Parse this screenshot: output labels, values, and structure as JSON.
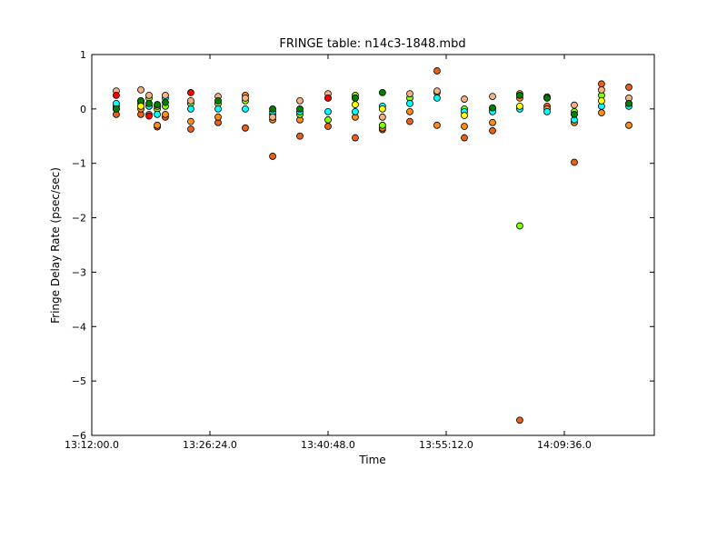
{
  "chart_data": {
    "type": "scatter",
    "title": "FRINGE table: n14c3-1848.mbd",
    "x_label": "Time",
    "y_label": "Fringe Delay Rate (psec/sec)",
    "x": [
      "13:14:59",
      "13:17:59",
      "13:18:59",
      "13:19:59",
      "13:20:58",
      "13:24:04",
      "13:27:24",
      "13:30:43",
      "13:34:03",
      "13:37:22",
      "13:40:48",
      "13:44:07",
      "13:47:26",
      "13:50:46",
      "13:54:05",
      "13:57:25",
      "14:00:51",
      "14:04:10",
      "14:07:30",
      "14:10:49",
      "14:14:08",
      "14:17:28"
    ],
    "xlim": [
      "13:12:00",
      "14:20:34"
    ],
    "xticks": [
      {
        "value": "13:12:00",
        "label": "13:12:00.0"
      },
      {
        "value": "13:26:24",
        "label": "13:26:24.0"
      },
      {
        "value": "13:40:48",
        "label": "13:40:48.0"
      },
      {
        "value": "13:55:12",
        "label": "13:55:12.0"
      },
      {
        "value": "14:09:36",
        "label": "14:09:36.0"
      }
    ],
    "ylim": [
      -6,
      1
    ],
    "yticks": [
      {
        "value": -6,
        "label": "−6"
      },
      {
        "value": -5,
        "label": "−5"
      },
      {
        "value": -4,
        "label": "−4"
      },
      {
        "value": -3,
        "label": "−3"
      },
      {
        "value": -2,
        "label": "−2"
      },
      {
        "value": -1,
        "label": "−1"
      },
      0,
      1
    ],
    "series": [
      {
        "color": "#e8601c",
        "values": [
          -0.1,
          -0.1,
          0.05,
          -0.33,
          -0.15,
          -0.37,
          -0.25,
          -0.35,
          -0.87,
          -0.5,
          -0.32,
          -0.53,
          -0.38,
          -0.23,
          0.7,
          -0.53,
          -0.4,
          -5.72,
          0.05,
          -0.98,
          0.46,
          0.4
        ]
      },
      {
        "color": "#ff8c1a",
        "values": [
          0.0,
          0.0,
          -0.1,
          -0.3,
          -0.1,
          -0.23,
          -0.15,
          0.25,
          -0.2,
          -0.2,
          0.2,
          -0.15,
          -0.35,
          -0.05,
          -0.3,
          -0.32,
          -0.25,
          0.2,
          0.0,
          -0.25,
          -0.07,
          -0.3
        ]
      },
      {
        "color": "#80ff00",
        "values": [
          0.05,
          0.1,
          0.2,
          0.0,
          0.05,
          0.1,
          0.1,
          0.15,
          -0.1,
          -0.1,
          -0.2,
          0.25,
          -0.3,
          0.2,
          0.3,
          0.0,
          0.0,
          -2.15,
          0.2,
          -0.05,
          0.25,
          0.1
        ]
      },
      {
        "color": "#00ffff",
        "values": [
          0.1,
          0.15,
          0.05,
          -0.1,
          0.2,
          0.0,
          0.0,
          0.0,
          -0.05,
          -0.05,
          -0.05,
          -0.05,
          0.05,
          0.1,
          0.2,
          -0.05,
          -0.05,
          0.0,
          -0.05,
          -0.2,
          0.05,
          0.05
        ]
      },
      {
        "color": "#f4b183",
        "values": [
          0.33,
          0.35,
          0.25,
          0.05,
          0.25,
          0.15,
          0.23,
          0.2,
          -0.15,
          0.15,
          0.28,
          0.2,
          -0.15,
          0.28,
          0.33,
          0.18,
          0.23,
          0.28,
          0.22,
          0.07,
          0.35,
          0.2
        ]
      },
      {
        "color": "#ff0000",
        "values": [
          0.25,
          null,
          -0.13,
          null,
          null,
          0.3,
          null,
          null,
          null,
          null,
          0.2,
          null,
          null,
          null,
          null,
          null,
          null,
          null,
          null,
          null,
          null,
          null
        ]
      },
      {
        "color": "#008000",
        "values": [
          0.0,
          0.15,
          0.1,
          0.08,
          0.12,
          null,
          0.15,
          null,
          0.0,
          0.0,
          null,
          0.2,
          0.3,
          null,
          null,
          null,
          0.02,
          0.25,
          0.2,
          -0.1,
          null,
          0.1
        ]
      },
      {
        "color": "#ffff00",
        "values": [
          null,
          0.05,
          null,
          null,
          null,
          null,
          null,
          null,
          null,
          null,
          null,
          0.08,
          0.0,
          null,
          null,
          -0.12,
          null,
          0.05,
          null,
          null,
          0.15,
          null
        ]
      }
    ]
  }
}
